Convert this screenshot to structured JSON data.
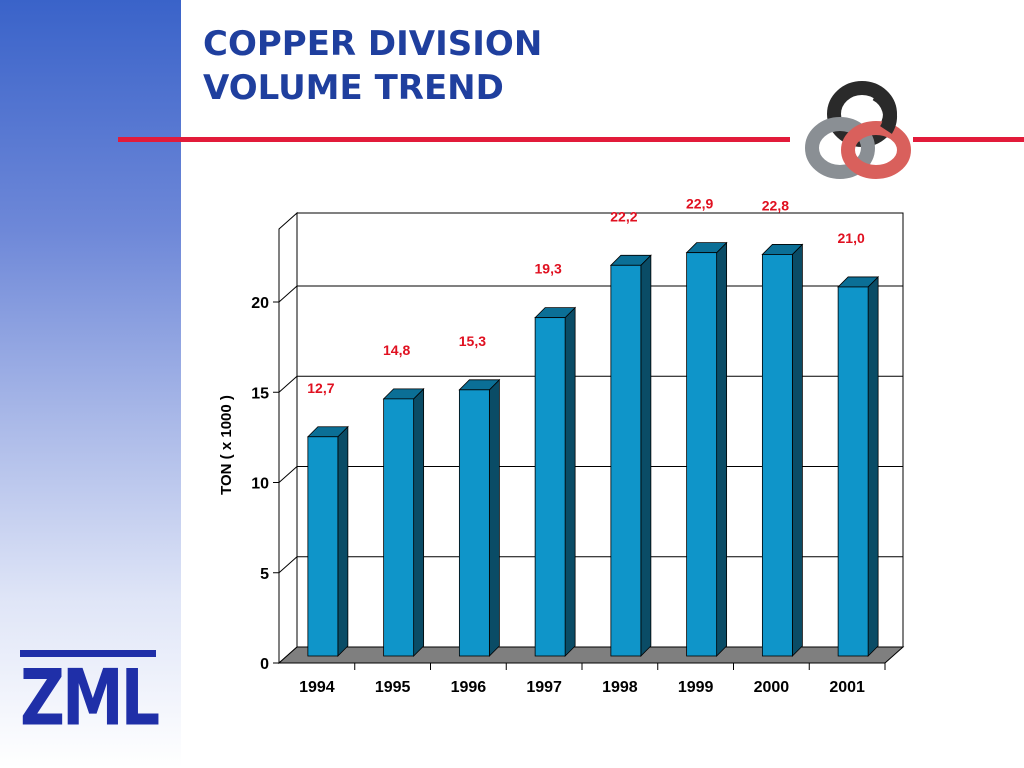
{
  "title": {
    "line1": "COPPER DIVISION",
    "line2": "VOLUME TREND"
  },
  "logo": {
    "text": "ZML"
  },
  "colors": {
    "title": "#1f3f9e",
    "accent_rule": "#e21b3a",
    "bar_front": "#0f95c9",
    "bar_top": "#0b6f96",
    "bar_side": "#0a4c66",
    "data_label": "#e01020",
    "floor": "#7f7f7f"
  },
  "chart_data": {
    "type": "bar",
    "categories": [
      "1994",
      "1995",
      "1996",
      "1997",
      "1998",
      "1999",
      "2000",
      "2001"
    ],
    "values": [
      12.7,
      14.8,
      15.3,
      19.3,
      22.2,
      22.9,
      22.8,
      21.0
    ],
    "data_labels": [
      "12,7",
      "14,8",
      "15,3",
      "19,3",
      "22,2",
      "22,9",
      "22,8",
      "21,0"
    ],
    "ylabel": "TON ( x 1000 )",
    "ylim": [
      0,
      20
    ],
    "yticks": [
      "0",
      "5",
      "10",
      "15",
      "20"
    ],
    "grid": true,
    "style": "3d"
  }
}
